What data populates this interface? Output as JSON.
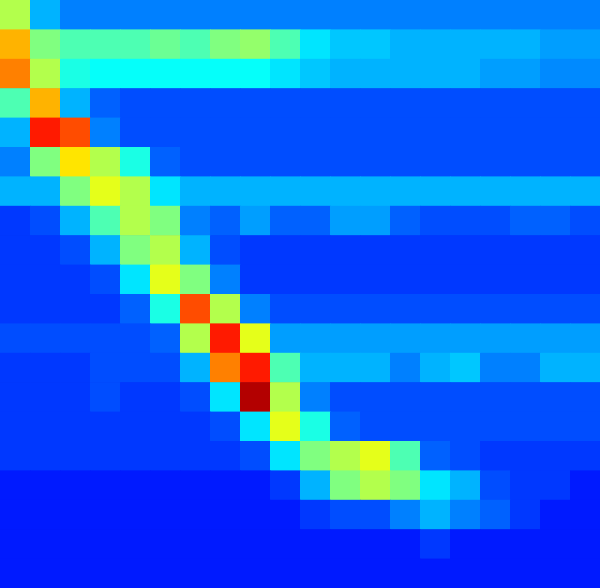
{
  "chart_data": {
    "type": "heatmap",
    "tick_labels": false,
    "xlim": [
      0,
      20
    ],
    "ylim": [
      0,
      20
    ],
    "color_range": [
      0,
      1
    ],
    "cells": [
      [
        0.55,
        0.3,
        0.25,
        0.25,
        0.25,
        0.25,
        0.25,
        0.25,
        0.25,
        0.25,
        0.25,
        0.25,
        0.25,
        0.25,
        0.25,
        0.25,
        0.25,
        0.25,
        0.25,
        0.25
      ],
      [
        0.7,
        0.5,
        0.45,
        0.45,
        0.45,
        0.48,
        0.45,
        0.5,
        0.52,
        0.45,
        0.35,
        0.32,
        0.32,
        0.3,
        0.3,
        0.3,
        0.3,
        0.3,
        0.28,
        0.28
      ],
      [
        0.75,
        0.55,
        0.4,
        0.38,
        0.38,
        0.38,
        0.38,
        0.38,
        0.38,
        0.35,
        0.32,
        0.3,
        0.3,
        0.3,
        0.3,
        0.3,
        0.28,
        0.28,
        0.26,
        0.26
      ],
      [
        0.45,
        0.7,
        0.3,
        0.22,
        0.2,
        0.2,
        0.2,
        0.2,
        0.2,
        0.2,
        0.2,
        0.2,
        0.2,
        0.2,
        0.2,
        0.2,
        0.2,
        0.2,
        0.2,
        0.2
      ],
      [
        0.3,
        0.85,
        0.8,
        0.25,
        0.2,
        0.2,
        0.2,
        0.2,
        0.2,
        0.2,
        0.2,
        0.2,
        0.2,
        0.2,
        0.2,
        0.2,
        0.2,
        0.2,
        0.2,
        0.2
      ],
      [
        0.25,
        0.5,
        0.65,
        0.55,
        0.4,
        0.22,
        0.2,
        0.2,
        0.2,
        0.2,
        0.2,
        0.2,
        0.2,
        0.2,
        0.2,
        0.2,
        0.2,
        0.2,
        0.2,
        0.2
      ],
      [
        0.3,
        0.3,
        0.5,
        0.6,
        0.55,
        0.35,
        0.3,
        0.3,
        0.3,
        0.3,
        0.3,
        0.3,
        0.3,
        0.3,
        0.3,
        0.3,
        0.3,
        0.3,
        0.3,
        0.3
      ],
      [
        0.18,
        0.2,
        0.3,
        0.45,
        0.55,
        0.5,
        0.25,
        0.22,
        0.28,
        0.22,
        0.22,
        0.28,
        0.28,
        0.22,
        0.2,
        0.2,
        0.2,
        0.22,
        0.22,
        0.2
      ],
      [
        0.18,
        0.18,
        0.2,
        0.3,
        0.5,
        0.55,
        0.3,
        0.2,
        0.18,
        0.18,
        0.18,
        0.18,
        0.18,
        0.18,
        0.18,
        0.18,
        0.18,
        0.18,
        0.18,
        0.18
      ],
      [
        0.18,
        0.18,
        0.18,
        0.2,
        0.35,
        0.6,
        0.5,
        0.25,
        0.18,
        0.18,
        0.18,
        0.18,
        0.18,
        0.18,
        0.18,
        0.18,
        0.18,
        0.18,
        0.18,
        0.18
      ],
      [
        0.18,
        0.18,
        0.18,
        0.18,
        0.22,
        0.4,
        0.8,
        0.55,
        0.25,
        0.2,
        0.2,
        0.2,
        0.2,
        0.2,
        0.2,
        0.2,
        0.2,
        0.2,
        0.2,
        0.2
      ],
      [
        0.2,
        0.2,
        0.2,
        0.2,
        0.2,
        0.22,
        0.55,
        0.85,
        0.6,
        0.28,
        0.28,
        0.28,
        0.28,
        0.28,
        0.28,
        0.28,
        0.28,
        0.28,
        0.28,
        0.28
      ],
      [
        0.18,
        0.18,
        0.18,
        0.2,
        0.2,
        0.2,
        0.3,
        0.75,
        0.85,
        0.45,
        0.3,
        0.3,
        0.3,
        0.25,
        0.3,
        0.32,
        0.25,
        0.25,
        0.3,
        0.3
      ],
      [
        0.18,
        0.18,
        0.18,
        0.2,
        0.18,
        0.18,
        0.2,
        0.35,
        0.95,
        0.55,
        0.25,
        0.2,
        0.2,
        0.2,
        0.2,
        0.2,
        0.2,
        0.2,
        0.2,
        0.2
      ],
      [
        0.18,
        0.18,
        0.18,
        0.18,
        0.18,
        0.18,
        0.18,
        0.2,
        0.35,
        0.6,
        0.4,
        0.22,
        0.2,
        0.2,
        0.2,
        0.2,
        0.2,
        0.2,
        0.2,
        0.2
      ],
      [
        0.18,
        0.18,
        0.18,
        0.18,
        0.18,
        0.18,
        0.18,
        0.18,
        0.2,
        0.35,
        0.5,
        0.55,
        0.6,
        0.45,
        0.22,
        0.2,
        0.18,
        0.18,
        0.18,
        0.18
      ],
      [
        0.15,
        0.15,
        0.15,
        0.15,
        0.15,
        0.15,
        0.15,
        0.15,
        0.15,
        0.18,
        0.3,
        0.5,
        0.55,
        0.5,
        0.35,
        0.3,
        0.2,
        0.18,
        0.18,
        0.15
      ],
      [
        0.15,
        0.15,
        0.15,
        0.15,
        0.15,
        0.15,
        0.15,
        0.15,
        0.15,
        0.15,
        0.18,
        0.2,
        0.2,
        0.25,
        0.3,
        0.25,
        0.22,
        0.18,
        0.15,
        0.15
      ],
      [
        0.15,
        0.15,
        0.15,
        0.15,
        0.15,
        0.15,
        0.15,
        0.15,
        0.15,
        0.15,
        0.15,
        0.15,
        0.15,
        0.15,
        0.18,
        0.15,
        0.15,
        0.15,
        0.15,
        0.15
      ],
      [
        0.15,
        0.15,
        0.15,
        0.15,
        0.15,
        0.15,
        0.15,
        0.15,
        0.15,
        0.15,
        0.15,
        0.15,
        0.15,
        0.15,
        0.15,
        0.15,
        0.15,
        0.15,
        0.15,
        0.15
      ]
    ]
  }
}
